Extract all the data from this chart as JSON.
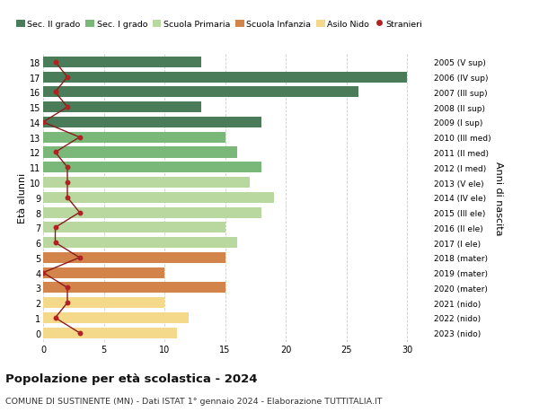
{
  "ages": [
    18,
    17,
    16,
    15,
    14,
    13,
    12,
    11,
    10,
    9,
    8,
    7,
    6,
    5,
    4,
    3,
    2,
    1,
    0
  ],
  "right_labels": [
    "2005 (V sup)",
    "2006 (IV sup)",
    "2007 (III sup)",
    "2008 (II sup)",
    "2009 (I sup)",
    "2010 (III med)",
    "2011 (II med)",
    "2012 (I med)",
    "2013 (V ele)",
    "2014 (IV ele)",
    "2015 (III ele)",
    "2016 (II ele)",
    "2017 (I ele)",
    "2018 (mater)",
    "2019 (mater)",
    "2020 (mater)",
    "2021 (nido)",
    "2022 (nido)",
    "2023 (nido)"
  ],
  "bar_values": [
    13,
    30,
    26,
    13,
    18,
    15,
    16,
    18,
    17,
    19,
    18,
    15,
    16,
    15,
    10,
    15,
    10,
    12,
    11
  ],
  "bar_colors": [
    "#4a7c59",
    "#4a7c59",
    "#4a7c59",
    "#4a7c59",
    "#4a7c59",
    "#7ab87a",
    "#7ab87a",
    "#7ab87a",
    "#b8d8a0",
    "#b8d8a0",
    "#b8d8a0",
    "#b8d8a0",
    "#b8d8a0",
    "#d2844a",
    "#d2844a",
    "#d2844a",
    "#f5d98b",
    "#f5d98b",
    "#f5d98b"
  ],
  "stranieri_values": [
    1,
    2,
    1,
    2,
    0,
    3,
    1,
    2,
    2,
    2,
    3,
    1,
    1,
    3,
    0,
    2,
    2,
    1,
    3
  ],
  "ylabel_left": "Età alunni",
  "ylabel_right": "Anni di nascita",
  "xlim": [
    0,
    32
  ],
  "xticks": [
    0,
    5,
    10,
    15,
    20,
    25,
    30
  ],
  "title_bold": "Popolazione per età scolastica - 2024",
  "subtitle": "COMUNE DI SUSTINENTE (MN) - Dati ISTAT 1° gennaio 2024 - Elaborazione TUTTITALIA.IT",
  "legend_labels": [
    "Sec. II grado",
    "Sec. I grado",
    "Scuola Primaria",
    "Scuola Infanzia",
    "Asilo Nido",
    "Stranieri"
  ],
  "legend_colors": [
    "#4a7c59",
    "#7ab87a",
    "#b8d8a0",
    "#d2844a",
    "#f5d98b",
    "#b22222"
  ],
  "bar_height": 0.72,
  "bg_color": "#ffffff",
  "grid_color": "#cccccc",
  "stranieri_line_color": "#8b1a1a",
  "stranieri_dot_color": "#b22222"
}
